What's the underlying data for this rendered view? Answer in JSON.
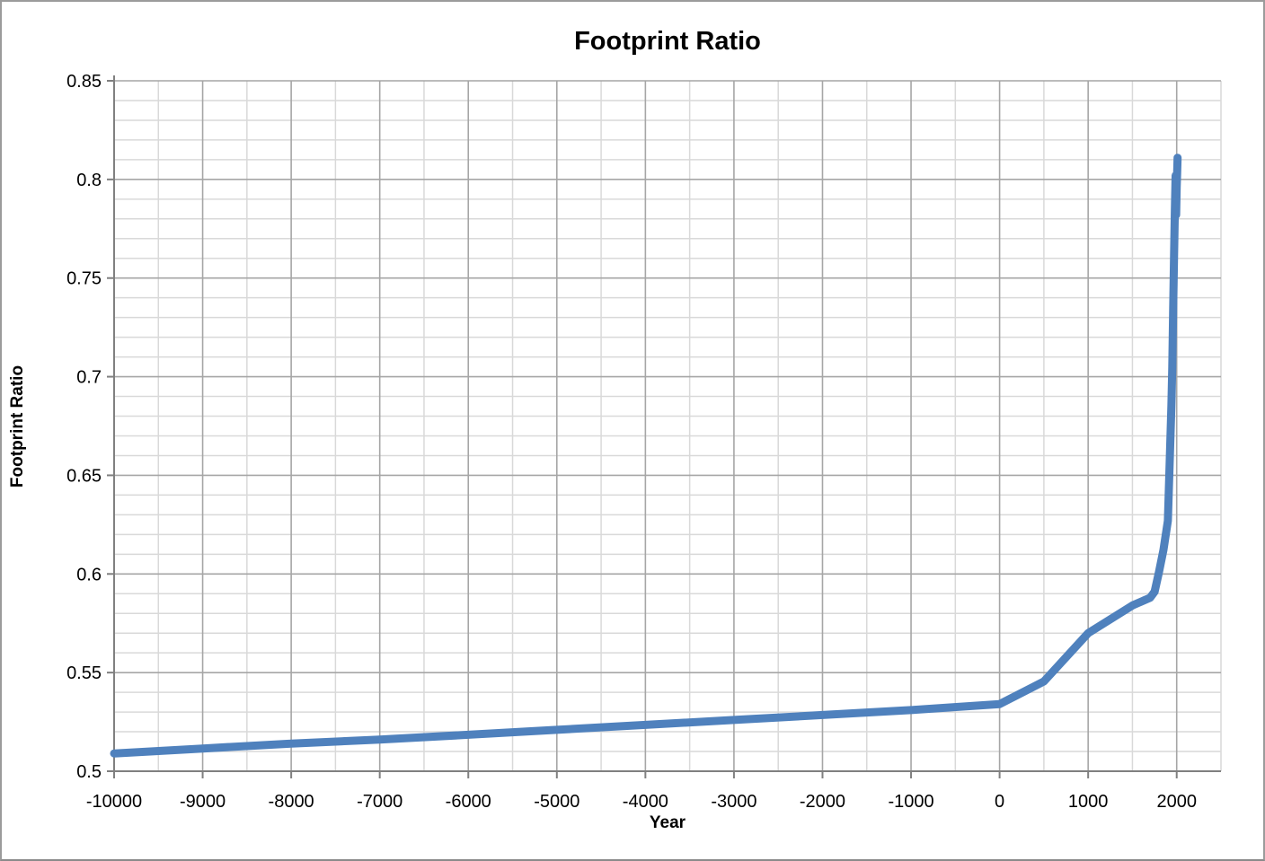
{
  "chart_data": {
    "type": "line",
    "title": "Footprint Ratio",
    "xlabel": "Year",
    "ylabel": "Footprint Ratio",
    "xlim": [
      -10000,
      2500
    ],
    "ylim": [
      0.5,
      0.85
    ],
    "x_major_unit": 1000,
    "x_minor_unit": 500,
    "y_major_unit": 0.05,
    "y_minor_unit": 0.01,
    "grid": "major-and-minor",
    "legend": "none",
    "x_ticks": [
      {
        "value": -10000,
        "label": "-10000"
      },
      {
        "value": -9000,
        "label": "-9000"
      },
      {
        "value": -8000,
        "label": "-8000"
      },
      {
        "value": -7000,
        "label": "-7000"
      },
      {
        "value": -6000,
        "label": "-6000"
      },
      {
        "value": -5000,
        "label": "-5000"
      },
      {
        "value": -4000,
        "label": "-4000"
      },
      {
        "value": -3000,
        "label": "-3000"
      },
      {
        "value": -2000,
        "label": "-2000"
      },
      {
        "value": -1000,
        "label": "-1000"
      },
      {
        "value": 0,
        "label": "0"
      },
      {
        "value": 1000,
        "label": "1000"
      },
      {
        "value": 2000,
        "label": "2000"
      }
    ],
    "y_ticks": [
      {
        "value": 0.5,
        "label": "0.5"
      },
      {
        "value": 0.55,
        "label": "0.55"
      },
      {
        "value": 0.6,
        "label": "0.6"
      },
      {
        "value": 0.65,
        "label": "0.65"
      },
      {
        "value": 0.7,
        "label": "0.7"
      },
      {
        "value": 0.75,
        "label": "0.75"
      },
      {
        "value": 0.8,
        "label": "0.8"
      },
      {
        "value": 0.85,
        "label": "0.85"
      }
    ],
    "series": [
      {
        "name": "Footprint Ratio",
        "color": "#4F81BD",
        "stroke_width": 9,
        "points": [
          [
            -10000,
            0.509
          ],
          [
            -9000,
            0.5115
          ],
          [
            -8000,
            0.514
          ],
          [
            -7000,
            0.516
          ],
          [
            -6000,
            0.5185
          ],
          [
            -5000,
            0.521
          ],
          [
            -4000,
            0.5235
          ],
          [
            -3000,
            0.526
          ],
          [
            -2000,
            0.5285
          ],
          [
            -1000,
            0.531
          ],
          [
            0,
            0.534
          ],
          [
            500,
            0.5455
          ],
          [
            1000,
            0.57
          ],
          [
            1500,
            0.584
          ],
          [
            1700,
            0.588
          ],
          [
            1750,
            0.591
          ],
          [
            1800,
            0.601
          ],
          [
            1850,
            0.612
          ],
          [
            1900,
            0.627
          ],
          [
            1920,
            0.655
          ],
          [
            1940,
            0.685
          ],
          [
            1950,
            0.705
          ],
          [
            1960,
            0.735
          ],
          [
            1970,
            0.762
          ],
          [
            1980,
            0.785
          ],
          [
            1988,
            0.802
          ],
          [
            1994,
            0.782
          ],
          [
            2000,
            0.796
          ],
          [
            2005,
            0.803
          ],
          [
            2010,
            0.811
          ]
        ]
      }
    ]
  },
  "colors": {
    "major_gridline": "#a6a6a6",
    "minor_gridline": "#d9d9d9",
    "axis_line": "#808080",
    "tick_mark": "#808080",
    "frame_border": "#9b9b9b",
    "background": "#ffffff",
    "series_line": "#4F81BD"
  }
}
